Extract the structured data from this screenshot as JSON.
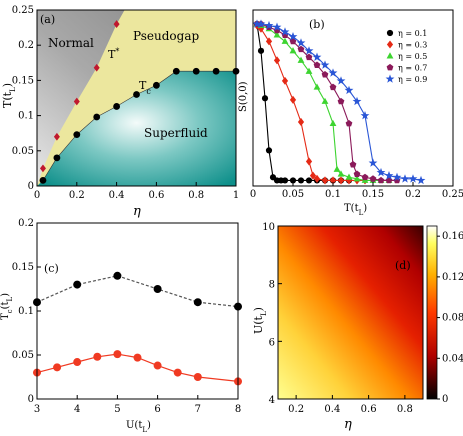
{
  "chart_data": [
    {
      "id": "a",
      "type": "area",
      "panel_label": "(a)",
      "xlabel": "η",
      "ylabel": "T(t_L)",
      "xlim": [
        0,
        1
      ],
      "ylim": [
        0,
        0.25
      ],
      "xticks": [
        "0",
        "0.2",
        "0.4",
        "0.6",
        "0.8",
        "1"
      ],
      "yticks": [
        "0",
        "0.05",
        "0.1",
        "0.15",
        "0.2",
        "0.25"
      ],
      "region_labels": [
        "Normal",
        "Pseudogap",
        "T*",
        "T_c",
        "Superfluid"
      ],
      "series": [
        {
          "name": "T*",
          "x": [
            0.03,
            0.1,
            0.2,
            0.3,
            0.4
          ],
          "y": [
            0.025,
            0.07,
            0.12,
            0.168,
            0.23
          ]
        },
        {
          "name": "T_c",
          "x": [
            0.03,
            0.1,
            0.2,
            0.3,
            0.4,
            0.5,
            0.6,
            0.7,
            0.8,
            0.9,
            1.0
          ],
          "y": [
            0.008,
            0.04,
            0.073,
            0.098,
            0.113,
            0.13,
            0.143,
            0.163,
            0.163,
            0.163,
            0.163
          ]
        }
      ],
      "colors": {
        "normal": "#8a8a8a",
        "pseudogap": "#ece79e",
        "superfluid": "#1b9c96",
        "tstar": "#c0182e",
        "tc": "#000000"
      }
    },
    {
      "id": "b",
      "type": "line",
      "panel_label": "(b)",
      "xlabel": "T(t_L)",
      "ylabel": "S(0,0)",
      "xlim": [
        0,
        0.25
      ],
      "xticks": [
        "0",
        "0.05",
        "0.1",
        "0.15",
        "0.2",
        "0.25"
      ],
      "legend": "top-right",
      "series": [
        {
          "name": "η = 0.1",
          "color": "#000000",
          "marker": "circle",
          "x": [
            0.005,
            0.01,
            0.015,
            0.02,
            0.025,
            0.03,
            0.035,
            0.04,
            0.05,
            0.06,
            0.07,
            0.08,
            0.09,
            0.1,
            0.11,
            0.12
          ],
          "y": [
            1.0,
            0.83,
            0.53,
            0.2,
            0.03,
            0.01,
            0.01,
            0.01,
            0.01,
            0.01,
            0.01,
            0.01,
            0.01,
            0.01,
            0.01,
            0.01
          ]
        },
        {
          "name": "η = 0.3",
          "color": "#e52a16",
          "marker": "diamond",
          "x": [
            0.005,
            0.01,
            0.02,
            0.03,
            0.04,
            0.05,
            0.06,
            0.07,
            0.075,
            0.08,
            0.09,
            0.1,
            0.11,
            0.12,
            0.13,
            0.14
          ],
          "y": [
            0.99,
            0.97,
            0.89,
            0.77,
            0.64,
            0.52,
            0.38,
            0.13,
            0.04,
            0.02,
            0.01,
            0.01,
            0.01,
            0.01,
            0.01,
            0.01
          ]
        },
        {
          "name": "η = 0.5",
          "color": "#3dd430",
          "marker": "triangle",
          "x": [
            0.005,
            0.01,
            0.02,
            0.03,
            0.04,
            0.05,
            0.06,
            0.07,
            0.08,
            0.09,
            0.1,
            0.105,
            0.11,
            0.12,
            0.13,
            0.14,
            0.15,
            0.16,
            0.17
          ],
          "y": [
            1.0,
            0.99,
            0.97,
            0.93,
            0.89,
            0.83,
            0.77,
            0.7,
            0.6,
            0.51,
            0.37,
            0.08,
            0.05,
            0.03,
            0.02,
            0.01,
            0.01,
            0.01,
            0.01
          ]
        },
        {
          "name": "η = 0.7",
          "color": "#8b1a5a",
          "marker": "pentagon",
          "x": [
            0.005,
            0.01,
            0.02,
            0.03,
            0.04,
            0.05,
            0.06,
            0.07,
            0.08,
            0.09,
            0.1,
            0.11,
            0.12,
            0.125,
            0.13,
            0.14,
            0.15,
            0.16,
            0.17,
            0.18
          ],
          "y": [
            1.0,
            1.0,
            0.98,
            0.96,
            0.93,
            0.89,
            0.84,
            0.79,
            0.74,
            0.68,
            0.6,
            0.51,
            0.37,
            0.11,
            0.05,
            0.03,
            0.02,
            0.01,
            0.01,
            0.01
          ]
        },
        {
          "name": "η = 0.9",
          "color": "#2a56d6",
          "marker": "star",
          "x": [
            0.005,
            0.01,
            0.02,
            0.03,
            0.04,
            0.05,
            0.06,
            0.07,
            0.08,
            0.09,
            0.1,
            0.11,
            0.12,
            0.13,
            0.14,
            0.15,
            0.16,
            0.17,
            0.18,
            0.19,
            0.2,
            0.21
          ],
          "y": [
            1.0,
            1.0,
            0.99,
            0.98,
            0.95,
            0.92,
            0.88,
            0.83,
            0.79,
            0.74,
            0.69,
            0.64,
            0.58,
            0.51,
            0.42,
            0.12,
            0.06,
            0.04,
            0.03,
            0.02,
            0.02,
            0.01
          ]
        }
      ]
    },
    {
      "id": "c",
      "type": "line",
      "panel_label": "(c)",
      "xlabel": "U(t_L)",
      "ylabel": "T_c(t_L)",
      "xlim": [
        3,
        8
      ],
      "ylim": [
        0,
        0.2
      ],
      "xticks": [
        "3",
        "4",
        "5",
        "6",
        "7",
        "8"
      ],
      "yticks": [
        "0",
        "0.05",
        "0.1",
        "0.15",
        "0.2"
      ],
      "series": [
        {
          "color": "#000000",
          "style": "dashed",
          "x": [
            3,
            4,
            5,
            6,
            7,
            8
          ],
          "y": [
            0.11,
            0.13,
            0.14,
            0.125,
            0.11,
            0.105
          ]
        },
        {
          "color": "#f03a22",
          "style": "solid",
          "x": [
            3,
            3.5,
            4,
            4.5,
            5,
            5.5,
            6,
            6.5,
            7,
            8
          ],
          "y": [
            0.03,
            0.036,
            0.042,
            0.048,
            0.051,
            0.047,
            0.038,
            0.03,
            0.025,
            0.02
          ]
        }
      ]
    },
    {
      "id": "d",
      "type": "heatmap",
      "panel_label": "(d)",
      "xlabel": "η",
      "ylabel": "U(t_L)",
      "xlim": [
        0.1,
        0.9
      ],
      "ylim": [
        4,
        10
      ],
      "xticks": [
        "0.2",
        "0.4",
        "0.6",
        "0.8"
      ],
      "yticks": [
        "4",
        "6",
        "8",
        "10"
      ],
      "colorbar": {
        "range": [
          0,
          0.17
        ],
        "ticks": [
          "0",
          "0.04",
          "0.08",
          "0.12",
          "0.16"
        ]
      }
    }
  ]
}
